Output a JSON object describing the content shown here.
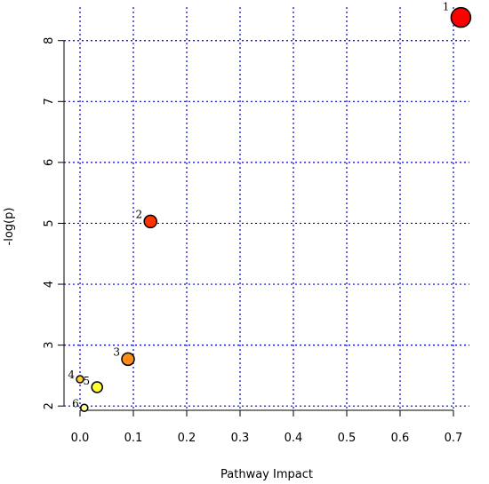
{
  "chart_data": {
    "type": "scatter",
    "xlabel": "Pathway Impact",
    "ylabel": "-log(p)",
    "xlim": [
      -0.03,
      0.73
    ],
    "ylim": [
      1.93,
      8.55
    ],
    "x_ticks": [
      0.0,
      0.1,
      0.2,
      0.3,
      0.4,
      0.5,
      0.6,
      0.7
    ],
    "x_tick_labels": [
      "0.0",
      "0.1",
      "0.2",
      "0.3",
      "0.4",
      "0.5",
      "0.6",
      "0.7"
    ],
    "y_ticks": [
      2,
      3,
      4,
      5,
      6,
      7,
      8
    ],
    "y_tick_labels": [
      "2",
      "3",
      "4",
      "5",
      "6",
      "7",
      "8"
    ],
    "grid": true,
    "points": [
      {
        "label": "1",
        "x": 0.714,
        "y": 8.38,
        "color": "#ff0000",
        "size": 11
      },
      {
        "label": "2",
        "x": 0.132,
        "y": 5.03,
        "color": "#ff3300",
        "size": 7
      },
      {
        "label": "3",
        "x": 0.09,
        "y": 2.77,
        "color": "#ff8c1a",
        "size": 7
      },
      {
        "label": "4",
        "x": 0.0,
        "y": 2.44,
        "color": "#ffcc33",
        "size": 4
      },
      {
        "label": "5",
        "x": 0.032,
        "y": 2.31,
        "color": "#ffff33",
        "size": 6
      },
      {
        "label": "6",
        "x": 0.008,
        "y": 1.97,
        "color": "#ffff99",
        "size": 4
      }
    ]
  }
}
